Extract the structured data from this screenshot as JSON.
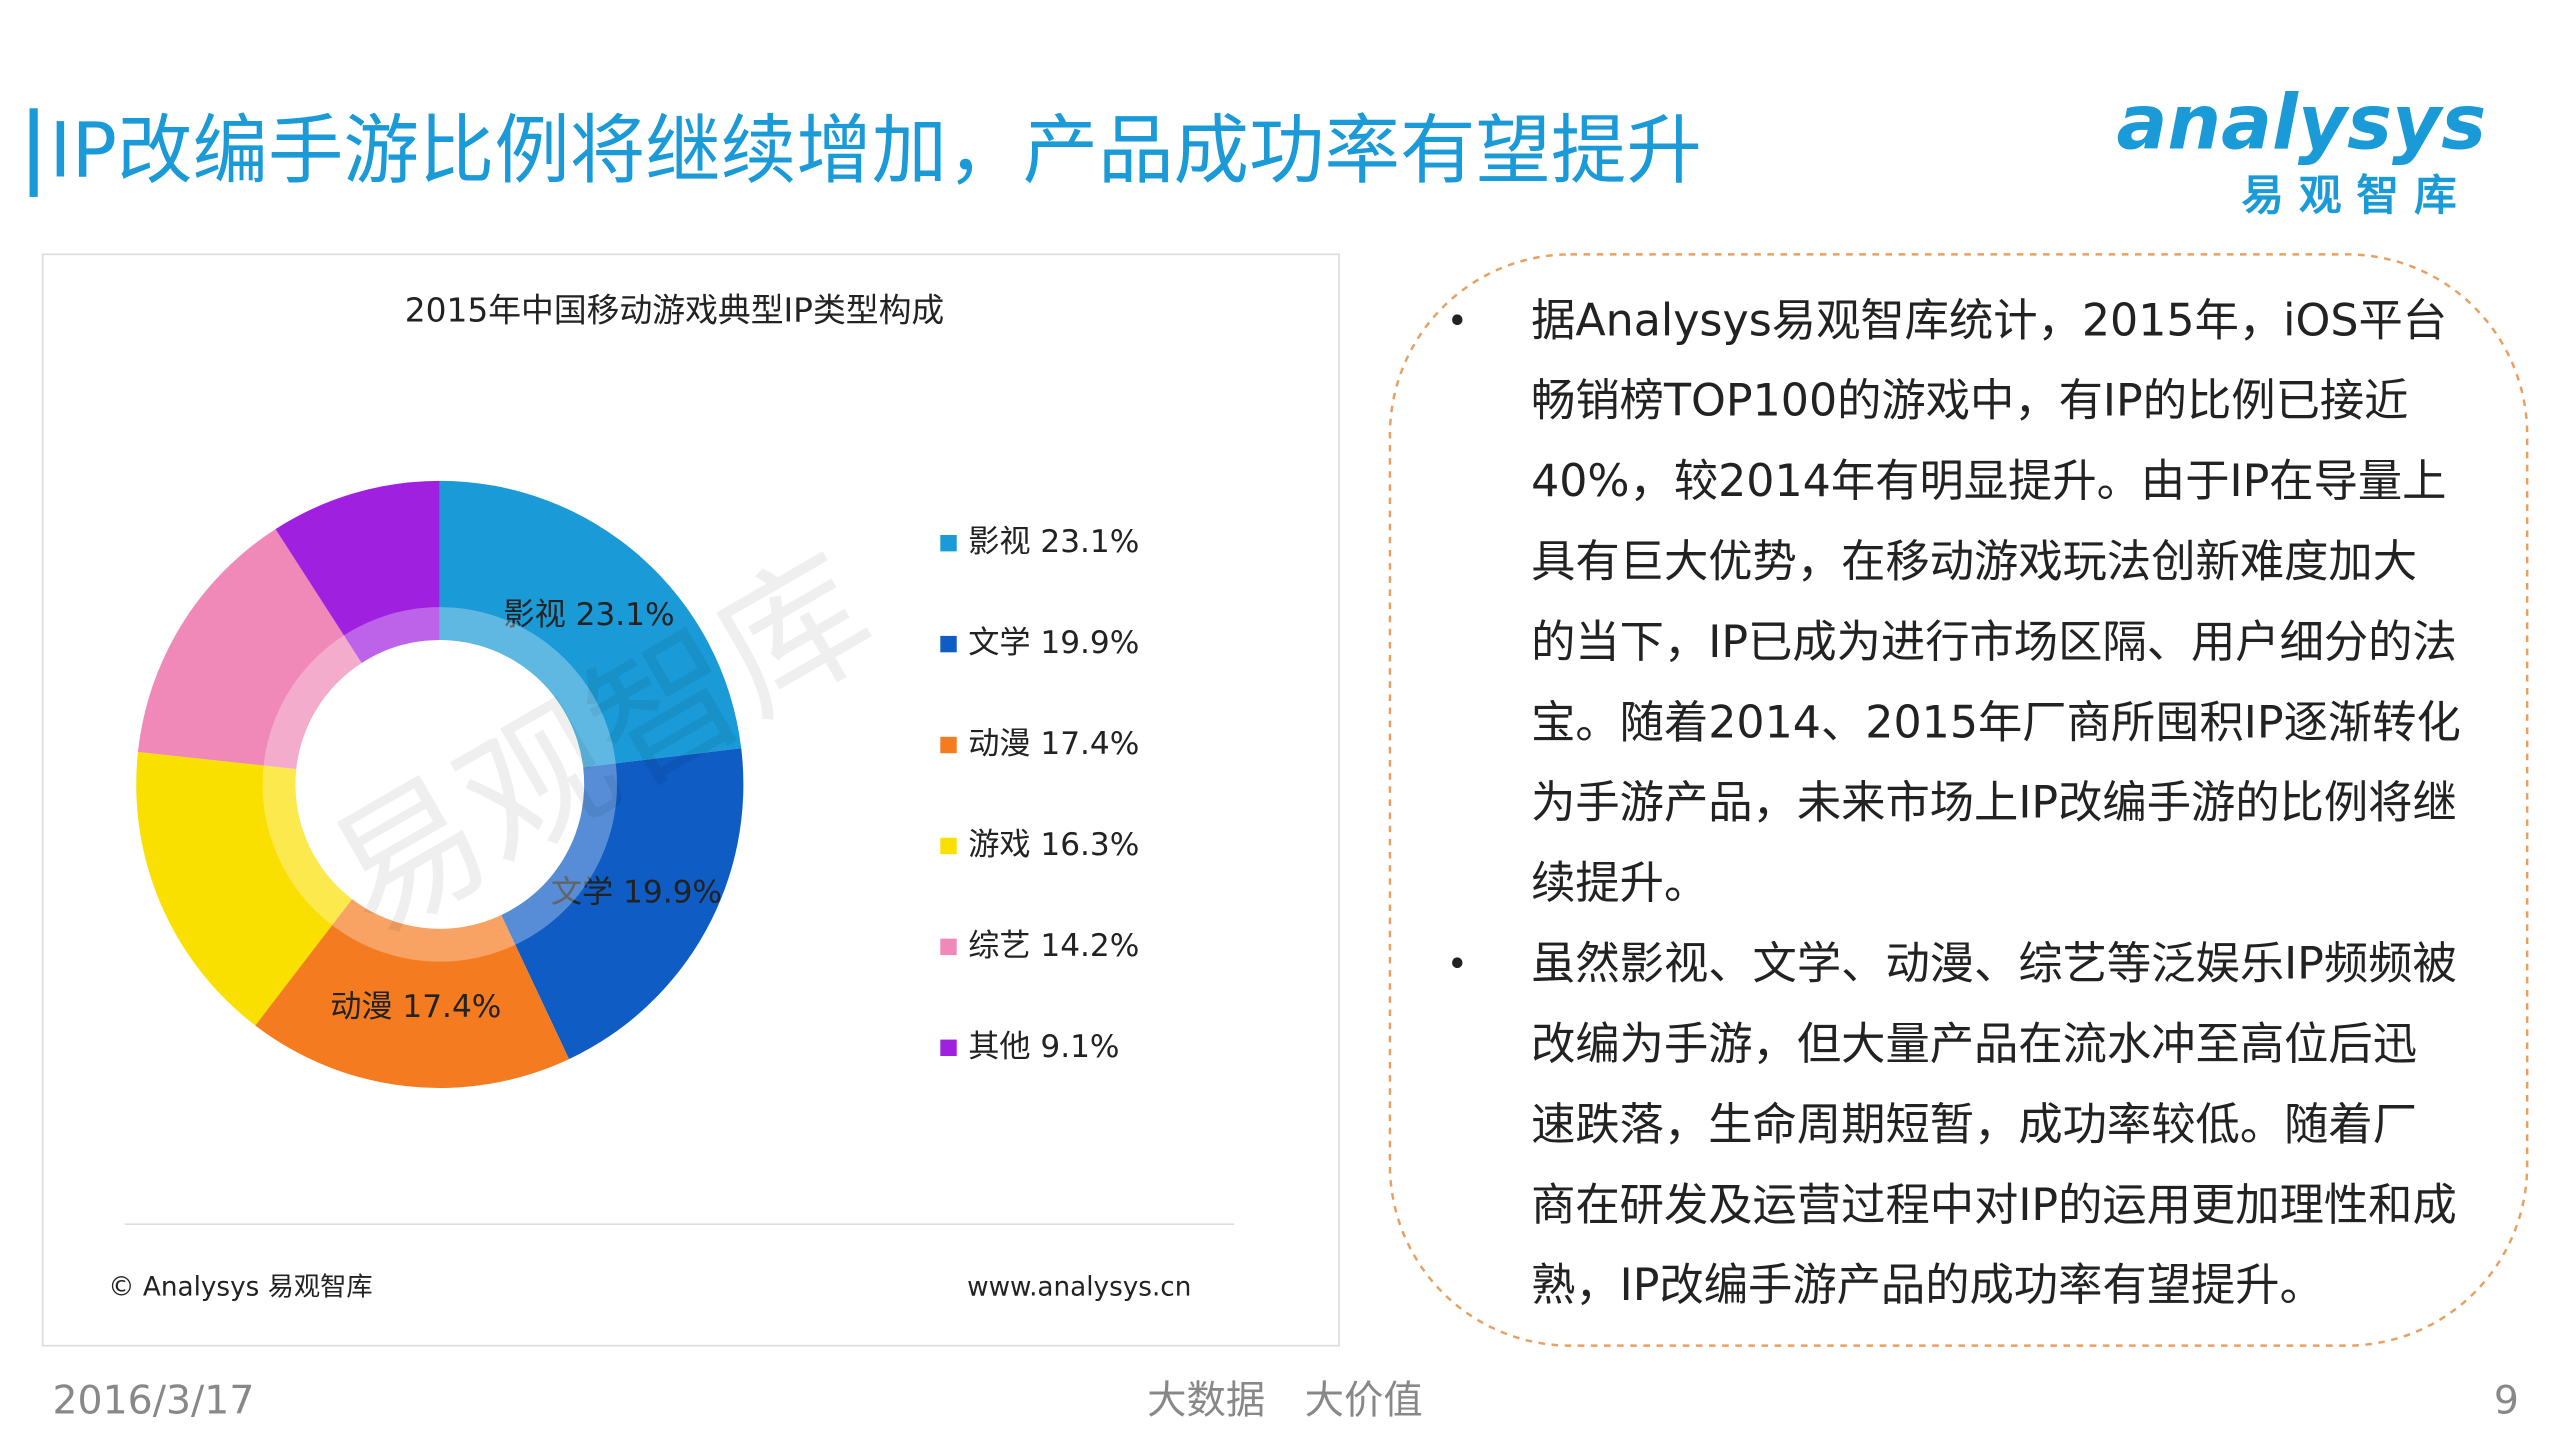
{
  "title": "IP改编手游比例将继续增加，产品成功率有望提升",
  "logo": {
    "name": "analysys",
    "subtitle": "易 观 智 库"
  },
  "chart_data": {
    "type": "pie",
    "title": "2015年中国移动游戏典型IP类型构成",
    "categories": [
      "影视",
      "文学",
      "动漫",
      "游戏",
      "综艺",
      "其他"
    ],
    "values": [
      23.1,
      19.9,
      17.4,
      16.3,
      14.2,
      9.1
    ],
    "value_labels": [
      "23.1%",
      "19.9%",
      "17.4%",
      "16.3%",
      "14.2%",
      "9.1%"
    ],
    "colors": [
      "#1a9ad6",
      "#0e5cc4",
      "#f57b20",
      "#f9e000",
      "#f088b8",
      "#a020e0"
    ],
    "slice_labels": [
      true,
      true,
      true,
      false,
      false,
      false
    ],
    "legend": "right",
    "watermark": "易观智库",
    "source": "© Analysys 易观智库",
    "url": "www.analysys.cn"
  },
  "bullets": [
    [
      "据Analysys易观智库统计，2015年，iOS平台",
      "畅销榜TOP100的游戏中，有IP的比例已接近",
      "40%，较2014年有明显提升。由于IP在导量上",
      "具有巨大优势，在移动游戏玩法创新难度加大",
      "的当下，IP已成为进行市场区隔、用户细分的法",
      "宝。随着2014、2015年厂商所囤积IP逐渐转化",
      "为手游产品，未来市场上IP改编手游的比例将继",
      "续提升。"
    ],
    [
      "虽然影视、文学、动漫、综艺等泛娱乐IP频频被",
      "改编为手游，但大量产品在流水冲至高位后迅",
      "速跌落，生命周期短暂，成功率较低。随着厂",
      "商在研发及运营过程中对IP的运用更加理性和成",
      "熟，IP改编手游产品的成功率有望提升。"
    ]
  ],
  "bullet_mark": "•",
  "footer": {
    "date": "2016/3/17",
    "slogan": "大数据　大价值",
    "page": "9"
  }
}
